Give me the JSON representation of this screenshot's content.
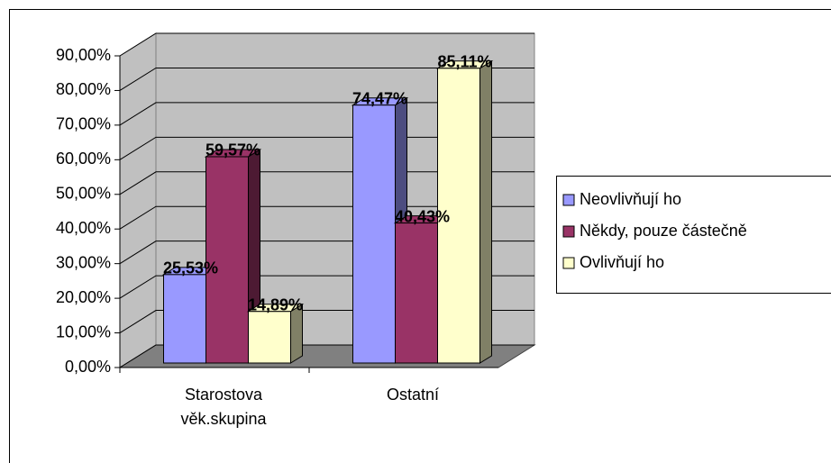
{
  "chart_data": {
    "type": "bar3d",
    "categories": [
      "Starostova věk.skupina",
      "Ostatní"
    ],
    "series": [
      {
        "name": "Neovlivňují ho",
        "color": "#9999ff",
        "side": "#4d4d80",
        "values": [
          25.53,
          74.47
        ],
        "value_labels": [
          "25,53%",
          "74,47%"
        ]
      },
      {
        "name": "Někdy, pouze částečně",
        "color": "#993366",
        "side": "#4d1a33",
        "values": [
          59.57,
          40.43
        ],
        "value_labels": [
          "59,57%",
          "40,43%"
        ]
      },
      {
        "name": "Ovlivňují ho",
        "color": "#ffffcc",
        "side": "#808066",
        "values": [
          14.89,
          85.11
        ],
        "value_labels": [
          "14,89%",
          "85,11%"
        ]
      }
    ],
    "ylim": [
      0,
      90
    ],
    "yticks": [
      {
        "value": 0,
        "label": "0,00%"
      },
      {
        "value": 10,
        "label": "10,00%"
      },
      {
        "value": 20,
        "label": "20,00%"
      },
      {
        "value": 30,
        "label": "30,00%"
      },
      {
        "value": 40,
        "label": "40,00%"
      },
      {
        "value": 50,
        "label": "50,00%"
      },
      {
        "value": 60,
        "label": "60,00%"
      },
      {
        "value": 70,
        "label": "70,00%"
      },
      {
        "value": 80,
        "label": "80,00%"
      },
      {
        "value": 90,
        "label": "90,00%"
      }
    ],
    "grid": true,
    "legend": "right"
  }
}
